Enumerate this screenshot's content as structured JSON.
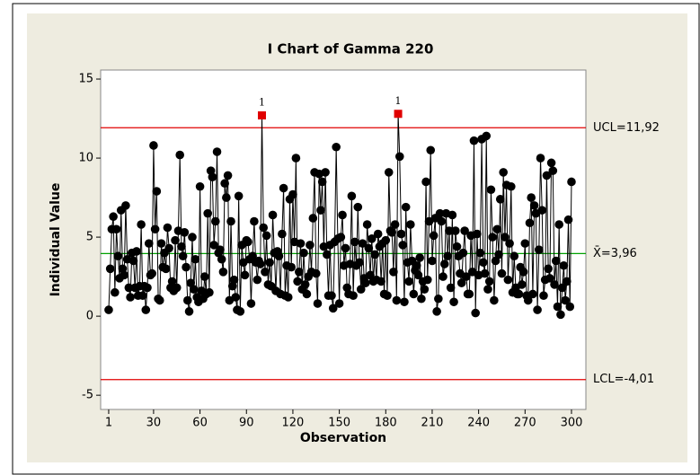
{
  "chart_data": {
    "type": "ichart",
    "title": "I Chart of Gamma 220",
    "x_label": "Observation",
    "y_label": "Individual Value",
    "x": [
      1,
      2,
      3,
      4,
      5,
      6,
      7,
      8,
      9,
      10,
      11,
      12,
      13,
      14,
      15,
      16,
      17,
      18,
      19,
      20,
      21,
      22,
      23,
      24,
      25,
      26,
      27,
      28,
      29,
      30,
      31,
      32,
      33,
      34,
      35,
      36,
      37,
      38,
      39,
      40,
      41,
      42,
      43,
      44,
      45,
      46,
      47,
      48,
      49,
      50,
      51,
      52,
      53,
      54,
      55,
      56,
      57,
      58,
      59,
      60,
      61,
      62,
      63,
      64,
      65,
      66,
      67,
      68,
      69,
      70,
      71,
      72,
      73,
      74,
      75,
      76,
      77,
      78,
      79,
      80,
      81,
      82,
      83,
      84,
      85,
      86,
      87,
      88,
      89,
      90,
      91,
      92,
      93,
      94,
      95,
      96,
      97,
      98,
      99,
      100,
      101,
      102,
      103,
      104,
      105,
      106,
      107,
      108,
      109,
      110,
      111,
      112,
      113,
      114,
      115,
      116,
      117,
      118,
      119,
      120,
      121,
      122,
      123,
      124,
      125,
      126,
      127,
      128,
      129,
      130,
      131,
      132,
      133,
      134,
      135,
      136,
      137,
      138,
      139,
      140,
      141,
      142,
      143,
      144,
      145,
      146,
      147,
      148,
      149,
      150,
      151,
      152,
      153,
      154,
      155,
      156,
      157,
      158,
      159,
      160,
      161,
      162,
      163,
      164,
      165,
      166,
      167,
      168,
      169,
      170,
      171,
      172,
      173,
      174,
      175,
      176,
      177,
      178,
      179,
      180,
      181,
      182,
      183,
      184,
      185,
      186,
      187,
      188,
      189,
      190,
      191,
      192,
      193,
      194,
      195,
      196,
      197,
      198,
      199,
      200,
      201,
      202,
      203,
      204,
      205,
      206,
      207,
      208,
      209,
      210,
      211,
      212,
      213,
      214,
      215,
      216,
      217,
      218,
      219,
      220,
      221,
      222,
      223,
      224,
      225,
      226,
      227,
      228,
      229,
      230,
      231,
      232,
      233,
      234,
      235,
      236,
      237,
      238,
      239,
      240,
      241,
      242,
      243,
      244,
      245,
      246,
      247,
      248,
      249,
      250,
      251,
      252,
      253,
      254,
      255,
      256,
      257,
      258,
      259,
      260,
      261,
      262,
      263,
      264,
      265,
      266,
      267,
      268,
      269,
      270,
      271,
      272,
      273,
      274,
      275,
      276,
      277,
      278,
      279,
      280,
      281,
      282,
      283,
      284,
      285,
      286,
      287,
      288,
      289,
      290,
      291,
      292,
      293,
      294,
      295,
      296,
      297,
      298,
      299,
      300
    ],
    "values": [
      0.4,
      3.0,
      5.5,
      6.3,
      1.5,
      5.5,
      3.8,
      2.4,
      6.7,
      3.0,
      2.6,
      7.0,
      3.6,
      1.8,
      1.2,
      4.0,
      3.5,
      1.8,
      4.1,
      1.3,
      1.9,
      5.8,
      1.3,
      1.9,
      0.4,
      1.8,
      4.6,
      2.6,
      2.7,
      10.8,
      5.5,
      7.9,
      1.1,
      1.0,
      4.6,
      3.1,
      4.0,
      3.0,
      5.6,
      4.3,
      1.8,
      2.2,
      1.6,
      4.8,
      1.8,
      5.4,
      10.2,
      4.4,
      3.8,
      5.3,
      3.1,
      1.0,
      0.3,
      2.1,
      5.0,
      1.7,
      3.6,
      1.2,
      0.9,
      8.2,
      1.6,
      1.1,
      2.5,
      1.4,
      6.5,
      1.5,
      9.2,
      8.8,
      4.5,
      6.0,
      10.4,
      4.0,
      4.2,
      3.6,
      2.8,
      8.4,
      7.5,
      8.9,
      1.0,
      6.0,
      1.9,
      2.3,
      1.2,
      0.4,
      7.6,
      0.3,
      4.5,
      3.4,
      2.6,
      4.8,
      4.7,
      3.6,
      0.8,
      3.8,
      6.0,
      3.4,
      2.3,
      3.5,
      3.3,
      12.7,
      5.6,
      2.8,
      5.1,
      2.0,
      3.4,
      1.9,
      6.4,
      4.0,
      1.6,
      4.1,
      3.8,
      1.4,
      5.2,
      8.1,
      1.3,
      3.2,
      1.2,
      7.4,
      3.1,
      7.7,
      4.7,
      10.0,
      2.2,
      2.8,
      4.6,
      1.7,
      4.0,
      2.0,
      1.4,
      2.5,
      4.5,
      2.8,
      6.2,
      9.1,
      2.7,
      0.8,
      9.0,
      6.7,
      8.5,
      4.4,
      9.1,
      3.9,
      1.3,
      4.5,
      1.3,
      0.5,
      4.7,
      10.7,
      4.9,
      0.8,
      5.0,
      6.4,
      3.2,
      4.3,
      1.8,
      1.4,
      3.3,
      7.6,
      1.3,
      4.7,
      3.2,
      6.9,
      3.4,
      1.7,
      4.6,
      2.4,
      2.1,
      5.8,
      4.3,
      2.6,
      4.9,
      2.2,
      3.9,
      2.3,
      5.2,
      4.4,
      2.2,
      4.6,
      1.4,
      4.8,
      1.3,
      9.1,
      5.4,
      5.3,
      2.8,
      5.8,
      1.0,
      12.8,
      10.1,
      5.2,
      4.5,
      0.9,
      6.9,
      3.4,
      2.2,
      5.8,
      3.5,
      1.4,
      2.9,
      3.2,
      2.6,
      3.7,
      1.1,
      2.2,
      1.7,
      8.5,
      2.3,
      6.0,
      10.5,
      3.5,
      5.1,
      6.2,
      0.3,
      1.1,
      6.5,
      6.0,
      2.5,
      3.3,
      6.5,
      3.8,
      5.4,
      1.8,
      6.4,
      0.9,
      5.4,
      4.4,
      3.8,
      2.7,
      2.1,
      4.0,
      5.4,
      2.5,
      1.4,
      1.4,
      5.1,
      2.8,
      11.1,
      0.2,
      5.2,
      2.6,
      4.0,
      11.2,
      3.4,
      2.7,
      11.4,
      1.7,
      2.2,
      8.0,
      5.0,
      1.0,
      3.5,
      5.5,
      3.9,
      7.4,
      2.7,
      9.1,
      5.0,
      8.3,
      2.3,
      4.6,
      8.2,
      1.5,
      3.8,
      1.8,
      1.4,
      1.4,
      3.1,
      2.0,
      2.8,
      4.6,
      1.3,
      1.0,
      5.9,
      7.5,
      1.4,
      7.0,
      6.5,
      0.4,
      4.2,
      10.0,
      6.7,
      1.3,
      2.3,
      8.9,
      3.0,
      2.4,
      9.7,
      9.2,
      2.0,
      3.5,
      0.6,
      5.8,
      0.1,
      1.8,
      3.2,
      1.0,
      2.2,
      6.1,
      0.6,
      8.5
    ],
    "color": "#000000",
    "flag_color": "#e00000",
    "flags": [
      {
        "x": 100,
        "label": "1"
      },
      {
        "x": 188,
        "label": "1"
      }
    ],
    "control_lines": [
      {
        "value": 11.92,
        "label": "UCL=11,92",
        "color": "#e00000"
      },
      {
        "value": 3.96,
        "label": "X̄=3,96",
        "color": "#00a000"
      },
      {
        "value": -4.01,
        "label": "LCL=-4,01",
        "color": "#e00000"
      }
    ],
    "xlim": [
      -4.2,
      309.3
    ],
    "xticks": [
      1,
      30,
      60,
      90,
      120,
      150,
      180,
      210,
      240,
      270,
      300
    ],
    "ylim": [
      -5.9,
      15.57
    ],
    "yticks": [
      -5,
      0,
      5,
      10,
      15
    ]
  }
}
